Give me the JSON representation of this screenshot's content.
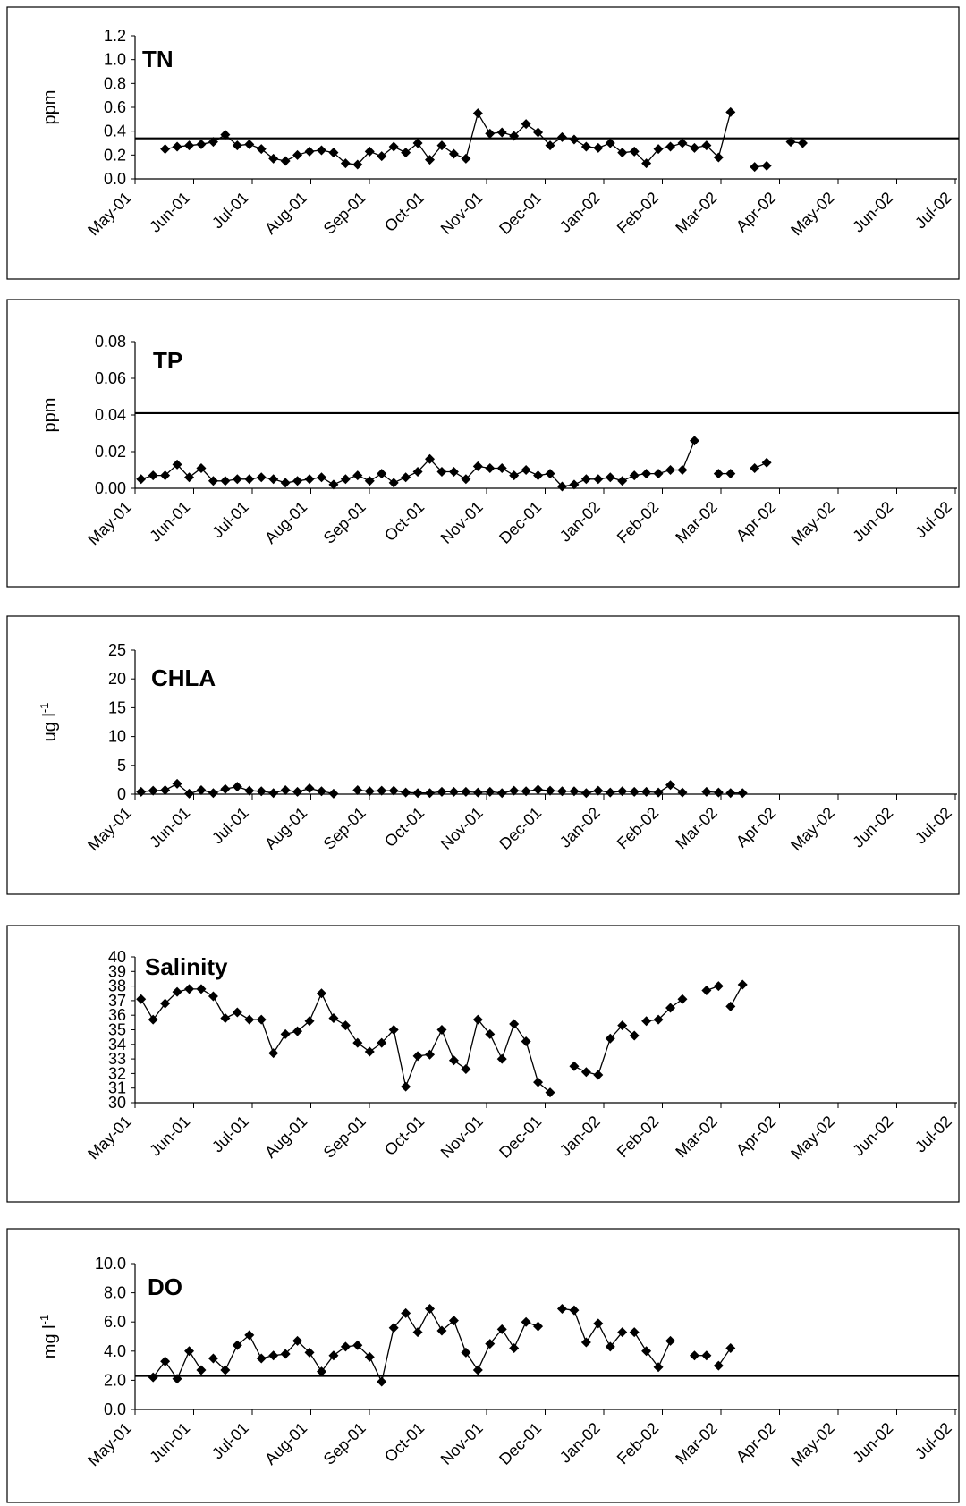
{
  "chart_data": [
    {
      "type": "line",
      "title": "TN",
      "ylabel": "ppm",
      "ylabel_sup": "",
      "ylim": [
        0,
        1.2
      ],
      "yticks": [
        "0.0",
        "0.2",
        "0.4",
        "0.6",
        "0.8",
        "1.0",
        "1.2"
      ],
      "xticks": [
        "May-01",
        "Jun-01",
        "Jul-01",
        "Aug-01",
        "Sep-01",
        "Oct-01",
        "Nov-01",
        "Dec-01",
        "Jan-02",
        "Feb-02",
        "Mar-02",
        "Apr-02",
        "May-02",
        "Jun-02",
        "Jul-02"
      ],
      "reference_line": 0.34,
      "segments": [
        [
          [
            2,
            0.25
          ],
          [
            3,
            0.27
          ],
          [
            4,
            0.28
          ],
          [
            5,
            0.29
          ],
          [
            6,
            0.31
          ],
          [
            7,
            0.37
          ],
          [
            8,
            0.28
          ],
          [
            9,
            0.29
          ],
          [
            10,
            0.25
          ],
          [
            11,
            0.17
          ],
          [
            12,
            0.15
          ],
          [
            13,
            0.2
          ],
          [
            14,
            0.23
          ],
          [
            15,
            0.24
          ],
          [
            16,
            0.22
          ],
          [
            17,
            0.13
          ],
          [
            18,
            0.12
          ],
          [
            19,
            0.23
          ],
          [
            20,
            0.19
          ],
          [
            21,
            0.27
          ],
          [
            22,
            0.22
          ],
          [
            23,
            0.3
          ],
          [
            24,
            0.16
          ],
          [
            25,
            0.28
          ],
          [
            26,
            0.21
          ],
          [
            27,
            0.17
          ],
          [
            28,
            0.55
          ],
          [
            29,
            0.38
          ],
          [
            30,
            0.39
          ],
          [
            31,
            0.36
          ],
          [
            32,
            0.46
          ],
          [
            33,
            0.39
          ],
          [
            34,
            0.28
          ],
          [
            35,
            0.35
          ],
          [
            36,
            0.33
          ],
          [
            37,
            0.27
          ],
          [
            38,
            0.26
          ],
          [
            39,
            0.3
          ],
          [
            40,
            0.22
          ],
          [
            41,
            0.23
          ],
          [
            42,
            0.13
          ],
          [
            43,
            0.25
          ],
          [
            44,
            0.27
          ],
          [
            45,
            0.3
          ],
          [
            46,
            0.26
          ],
          [
            47,
            0.28
          ],
          [
            48,
            0.18
          ],
          [
            49,
            0.56
          ]
        ],
        [
          [
            51,
            0.1
          ],
          [
            52,
            0.11
          ]
        ],
        [
          [
            54,
            0.31
          ],
          [
            55,
            0.3
          ]
        ]
      ]
    },
    {
      "type": "line",
      "title": "TP",
      "ylabel": "ppm",
      "ylabel_sup": "",
      "ylim": [
        0,
        0.08
      ],
      "yticks": [
        "0.00",
        "0.02",
        "0.04",
        "0.06",
        "0.08"
      ],
      "xticks": [
        "May-01",
        "Jun-01",
        "Jul-01",
        "Aug-01",
        "Sep-01",
        "Oct-01",
        "Nov-01",
        "Dec-01",
        "Jan-02",
        "Feb-02",
        "Mar-02",
        "Apr-02",
        "May-02",
        "Jun-02",
        "Jul-02"
      ],
      "reference_line": 0.041,
      "segments": [
        [
          [
            0,
            0.005
          ],
          [
            1,
            0.007
          ],
          [
            2,
            0.007
          ],
          [
            3,
            0.013
          ],
          [
            4,
            0.006
          ],
          [
            5,
            0.011
          ],
          [
            6,
            0.004
          ],
          [
            7,
            0.004
          ],
          [
            8,
            0.005
          ],
          [
            9,
            0.005
          ],
          [
            10,
            0.006
          ],
          [
            11,
            0.005
          ],
          [
            12,
            0.003
          ],
          [
            13,
            0.004
          ],
          [
            14,
            0.005
          ],
          [
            15,
            0.006
          ],
          [
            16,
            0.002
          ],
          [
            17,
            0.005
          ],
          [
            18,
            0.007
          ],
          [
            19,
            0.004
          ],
          [
            20,
            0.008
          ],
          [
            21,
            0.003
          ],
          [
            22,
            0.006
          ],
          [
            23,
            0.009
          ],
          [
            24,
            0.016
          ],
          [
            25,
            0.009
          ],
          [
            26,
            0.009
          ],
          [
            27,
            0.005
          ],
          [
            28,
            0.012
          ],
          [
            29,
            0.011
          ],
          [
            30,
            0.011
          ],
          [
            31,
            0.007
          ],
          [
            32,
            0.01
          ],
          [
            33,
            0.007
          ],
          [
            34,
            0.008
          ],
          [
            35,
            0.001
          ],
          [
            36,
            0.002
          ],
          [
            37,
            0.005
          ],
          [
            38,
            0.005
          ],
          [
            39,
            0.006
          ],
          [
            40,
            0.004
          ],
          [
            41,
            0.007
          ],
          [
            42,
            0.008
          ],
          [
            43,
            0.008
          ],
          [
            44,
            0.01
          ],
          [
            45,
            0.01
          ],
          [
            46,
            0.026
          ]
        ],
        [
          [
            48,
            0.008
          ],
          [
            49,
            0.008
          ]
        ],
        [
          [
            51,
            0.011
          ],
          [
            52,
            0.014
          ]
        ]
      ]
    },
    {
      "type": "line",
      "title": "CHLA",
      "ylabel": "ug l",
      "ylabel_sup": "-1",
      "ylim": [
        0,
        25
      ],
      "yticks": [
        "0",
        "5",
        "10",
        "15",
        "20",
        "25"
      ],
      "xticks": [
        "May-01",
        "Jun-01",
        "Jul-01",
        "Aug-01",
        "Sep-01",
        "Oct-01",
        "Nov-01",
        "Dec-01",
        "Jan-02",
        "Feb-02",
        "Mar-02",
        "Apr-02",
        "May-02",
        "Jun-02",
        "Jul-02"
      ],
      "reference_line": null,
      "segments": [
        [
          [
            0,
            0.4
          ],
          [
            1,
            0.6
          ],
          [
            2,
            0.7
          ],
          [
            3,
            1.8
          ],
          [
            4,
            0.1
          ],
          [
            5,
            0.7
          ],
          [
            6,
            0.2
          ],
          [
            7,
            0.9
          ],
          [
            8,
            1.3
          ],
          [
            9,
            0.6
          ],
          [
            10,
            0.5
          ],
          [
            11,
            0.2
          ],
          [
            12,
            0.7
          ],
          [
            13,
            0.4
          ],
          [
            14,
            1.0
          ],
          [
            15,
            0.5
          ],
          [
            16,
            0.1
          ]
        ],
        [
          [
            18,
            0.7
          ],
          [
            19,
            0.5
          ],
          [
            20,
            0.6
          ],
          [
            21,
            0.6
          ],
          [
            22,
            0.3
          ],
          [
            23,
            0.2
          ],
          [
            24,
            0.2
          ],
          [
            25,
            0.4
          ],
          [
            26,
            0.4
          ],
          [
            27,
            0.4
          ],
          [
            28,
            0.3
          ],
          [
            29,
            0.4
          ],
          [
            30,
            0.2
          ],
          [
            31,
            0.6
          ],
          [
            32,
            0.5
          ],
          [
            33,
            0.8
          ],
          [
            34,
            0.6
          ],
          [
            35,
            0.5
          ],
          [
            36,
            0.5
          ],
          [
            37,
            0.2
          ],
          [
            38,
            0.6
          ],
          [
            39,
            0.3
          ],
          [
            40,
            0.5
          ],
          [
            41,
            0.4
          ],
          [
            42,
            0.4
          ],
          [
            43,
            0.3
          ],
          [
            44,
            1.6
          ],
          [
            45,
            0.3
          ]
        ],
        [
          [
            47,
            0.4
          ],
          [
            48,
            0.3
          ]
        ],
        [
          [
            49,
            0.2
          ],
          [
            50,
            0.2
          ]
        ]
      ]
    },
    {
      "type": "line",
      "title": "Salinity",
      "ylabel": "",
      "ylabel_sup": "",
      "ylim": [
        30,
        40
      ],
      "yticks": [
        "30",
        "31",
        "32",
        "33",
        "34",
        "35",
        "36",
        "37",
        "38",
        "39",
        "40"
      ],
      "xticks": [
        "May-01",
        "Jun-01",
        "Jul-01",
        "Aug-01",
        "Sep-01",
        "Oct-01",
        "Nov-01",
        "Dec-01",
        "Jan-02",
        "Feb-02",
        "Mar-02",
        "Apr-02",
        "May-02",
        "Jun-02",
        "Jul-02"
      ],
      "reference_line": null,
      "segments": [
        [
          [
            0,
            37.1
          ],
          [
            1,
            35.7
          ],
          [
            2,
            36.8
          ],
          [
            3,
            37.6
          ],
          [
            4,
            37.8
          ],
          [
            5,
            37.8
          ],
          [
            6,
            37.3
          ],
          [
            7,
            35.8
          ],
          [
            8,
            36.2
          ],
          [
            9,
            35.7
          ],
          [
            10,
            35.7
          ],
          [
            11,
            33.4
          ],
          [
            12,
            34.7
          ],
          [
            13,
            34.9
          ],
          [
            14,
            35.6
          ],
          [
            15,
            37.5
          ],
          [
            16,
            35.8
          ],
          [
            17,
            35.3
          ],
          [
            18,
            34.1
          ],
          [
            19,
            33.5
          ],
          [
            20,
            34.1
          ],
          [
            21,
            35.0
          ],
          [
            22,
            31.1
          ],
          [
            23,
            33.2
          ],
          [
            24,
            33.3
          ],
          [
            25,
            35.0
          ],
          [
            26,
            32.9
          ],
          [
            27,
            32.3
          ],
          [
            28,
            35.7
          ],
          [
            29,
            34.7
          ],
          [
            30,
            33.0
          ],
          [
            31,
            35.4
          ],
          [
            32,
            34.2
          ],
          [
            33,
            31.4
          ],
          [
            34,
            30.7
          ]
        ],
        [
          [
            36,
            32.5
          ],
          [
            37,
            32.1
          ],
          [
            38,
            31.9
          ],
          [
            39,
            34.4
          ],
          [
            40,
            35.3
          ],
          [
            41,
            34.6
          ]
        ],
        [
          [
            42,
            35.6
          ],
          [
            43,
            35.7
          ],
          [
            44,
            36.5
          ],
          [
            45,
            37.1
          ]
        ],
        [
          [
            47,
            37.7
          ],
          [
            48,
            38.0
          ]
        ],
        [
          [
            49,
            36.6
          ],
          [
            50,
            38.1
          ]
        ]
      ]
    },
    {
      "type": "line",
      "title": "DO",
      "ylabel": "mg l",
      "ylabel_sup": "-1",
      "ylim": [
        0,
        10
      ],
      "yticks": [
        "0.0",
        "2.0",
        "4.0",
        "6.0",
        "8.0",
        "10.0"
      ],
      "xticks": [
        "May-01",
        "Jun-01",
        "Jul-01",
        "Aug-01",
        "Sep-01",
        "Oct-01",
        "Nov-01",
        "Dec-01",
        "Jan-02",
        "Feb-02",
        "Mar-02",
        "Apr-02",
        "May-02",
        "Jun-02",
        "Jul-02"
      ],
      "reference_line": 2.3,
      "segments": [
        [
          [
            1,
            2.2
          ],
          [
            2,
            3.3
          ],
          [
            3,
            2.1
          ],
          [
            4,
            4.0
          ],
          [
            5,
            2.7
          ]
        ],
        [
          [
            6,
            3.5
          ],
          [
            7,
            2.7
          ],
          [
            8,
            4.4
          ],
          [
            9,
            5.1
          ],
          [
            10,
            3.5
          ],
          [
            11,
            3.7
          ],
          [
            12,
            3.8
          ],
          [
            13,
            4.7
          ],
          [
            14,
            3.9
          ],
          [
            15,
            2.6
          ],
          [
            16,
            3.7
          ],
          [
            17,
            4.3
          ],
          [
            18,
            4.4
          ],
          [
            19,
            3.6
          ],
          [
            20,
            1.9
          ],
          [
            21,
            5.6
          ],
          [
            22,
            6.6
          ],
          [
            23,
            5.3
          ],
          [
            24,
            6.9
          ],
          [
            25,
            5.4
          ],
          [
            26,
            6.1
          ],
          [
            27,
            3.9
          ],
          [
            28,
            2.7
          ],
          [
            29,
            4.5
          ],
          [
            30,
            5.5
          ],
          [
            31,
            4.2
          ],
          [
            32,
            6.0
          ],
          [
            33,
            5.7
          ]
        ],
        [
          [
            35,
            6.9
          ],
          [
            36,
            6.8
          ],
          [
            37,
            4.6
          ],
          [
            38,
            5.9
          ],
          [
            39,
            4.3
          ],
          [
            40,
            5.3
          ]
        ],
        [
          [
            41,
            5.3
          ],
          [
            42,
            4.0
          ],
          [
            43,
            2.9
          ],
          [
            44,
            4.7
          ]
        ],
        [
          [
            46,
            3.7
          ],
          [
            47,
            3.7
          ]
        ],
        [
          [
            48,
            3.0
          ],
          [
            49,
            4.2
          ]
        ]
      ]
    }
  ]
}
